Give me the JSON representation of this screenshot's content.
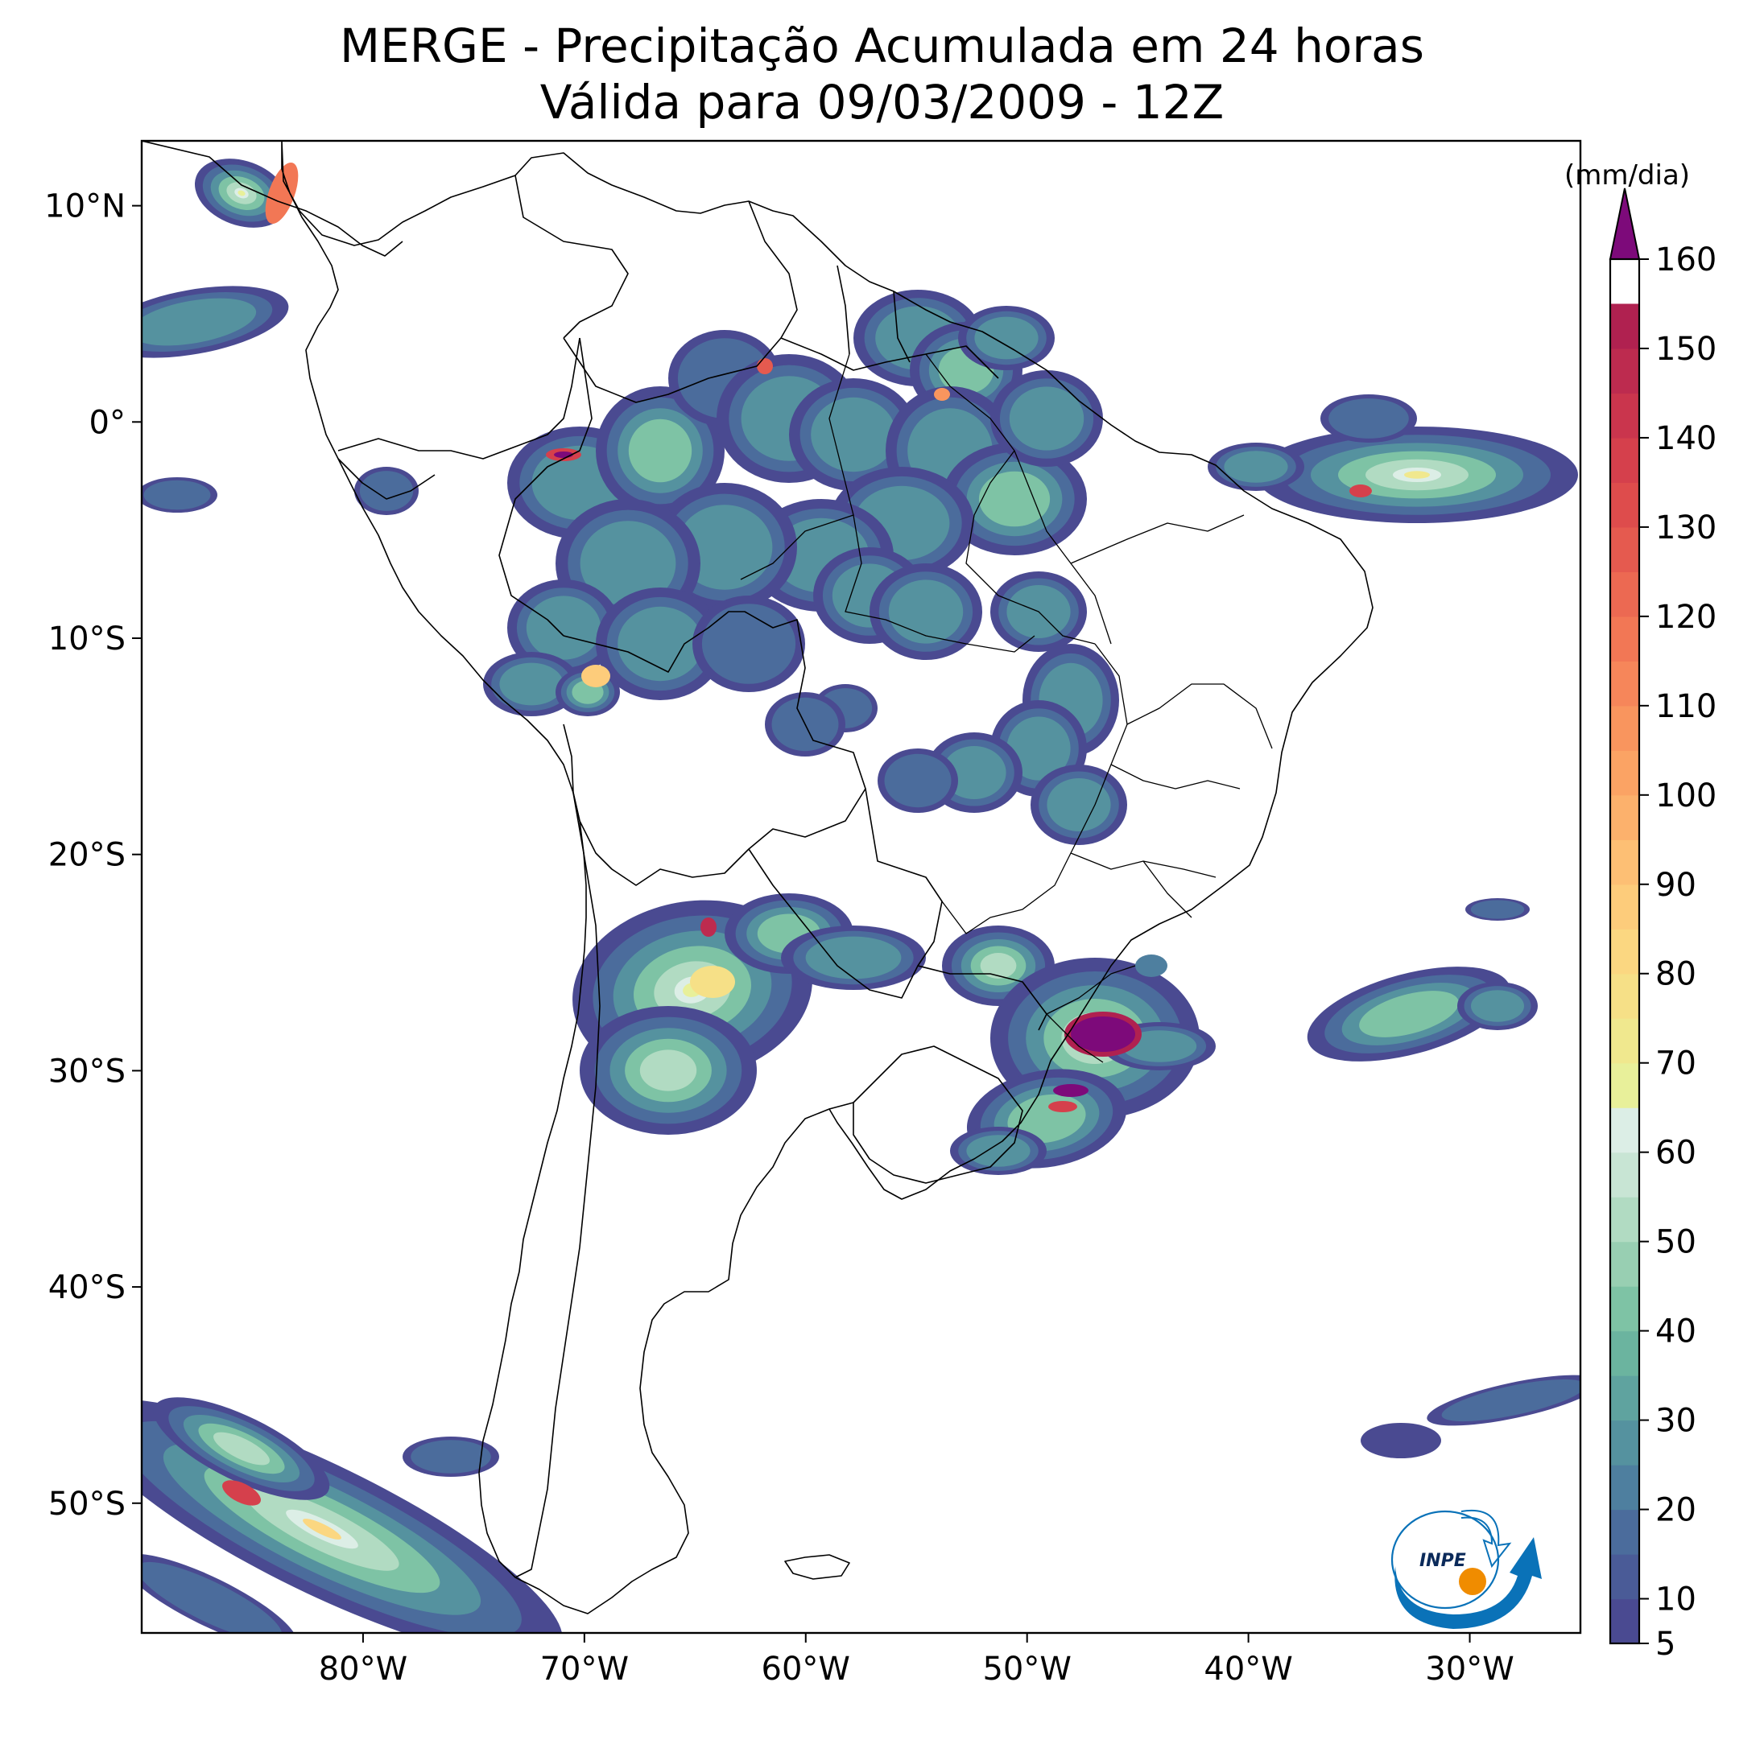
{
  "title": {
    "line1": "MERGE - Precipitação Acumulada em 24 horas",
    "line2": "Válida para 09/03/2009 - 12Z"
  },
  "map": {
    "lon_range": [
      -90,
      -25
    ],
    "lat_range": [
      -56,
      13
    ],
    "lon_ticks": [
      {
        "value": -80,
        "label": "80°W"
      },
      {
        "value": -70,
        "label": "70°W"
      },
      {
        "value": -60,
        "label": "60°W"
      },
      {
        "value": -50,
        "label": "50°W"
      },
      {
        "value": -40,
        "label": "40°W"
      },
      {
        "value": -30,
        "label": "30°W"
      }
    ],
    "lat_ticks": [
      {
        "value": 10,
        "label": "10°N"
      },
      {
        "value": 0,
        "label": "0°"
      },
      {
        "value": -10,
        "label": "10°S"
      },
      {
        "value": -20,
        "label": "20°S"
      },
      {
        "value": -30,
        "label": "30°S"
      },
      {
        "value": -40,
        "label": "40°S"
      },
      {
        "value": -50,
        "label": "50°S"
      }
    ]
  },
  "colorbar": {
    "unit_label": "(mm/dia)",
    "min": 5,
    "max": 160,
    "extend": "max",
    "tick_values": [
      5,
      10,
      20,
      30,
      40,
      50,
      60,
      70,
      80,
      90,
      100,
      110,
      120,
      130,
      140,
      150,
      160
    ],
    "tick_labels": [
      "5",
      "10",
      "20",
      "30",
      "40",
      "50",
      "60",
      "70",
      "80",
      "90",
      "100",
      "110",
      "120",
      "130",
      "140",
      "150",
      "160"
    ],
    "levels": [
      5,
      10,
      15,
      20,
      25,
      30,
      35,
      40,
      45,
      50,
      55,
      60,
      65,
      70,
      75,
      80,
      85,
      90,
      95,
      100,
      105,
      110,
      115,
      120,
      125,
      130,
      135,
      140,
      145,
      150,
      155,
      160
    ],
    "colors": [
      "#4a4a91",
      "#4a5b97",
      "#4b6c9c",
      "#4e7f9f",
      "#55929f",
      "#5fa39f",
      "#6bb49f",
      "#7ec3a5",
      "#98cfb2",
      "#b1dbc2",
      "#c8e5d4",
      "#dceee6",
      "#e8f09a",
      "#f0e88e",
      "#f6e087",
      "#fbd781",
      "#fdcc7b",
      "#fdbf74",
      "#fcb16c",
      "#fba364",
      "#f9955e",
      "#f6865a",
      "#f27755",
      "#ec6952",
      "#e55a4f",
      "#de4c4c",
      "#d5404c",
      "#ca354d",
      "#bd2b4f",
      "#b02150"
    ],
    "over_color": "#7d0a7a"
  },
  "logo": {
    "text": "INPE",
    "colors": {
      "blue": "#0a72b8",
      "orange": "#f08c00"
    }
  }
}
